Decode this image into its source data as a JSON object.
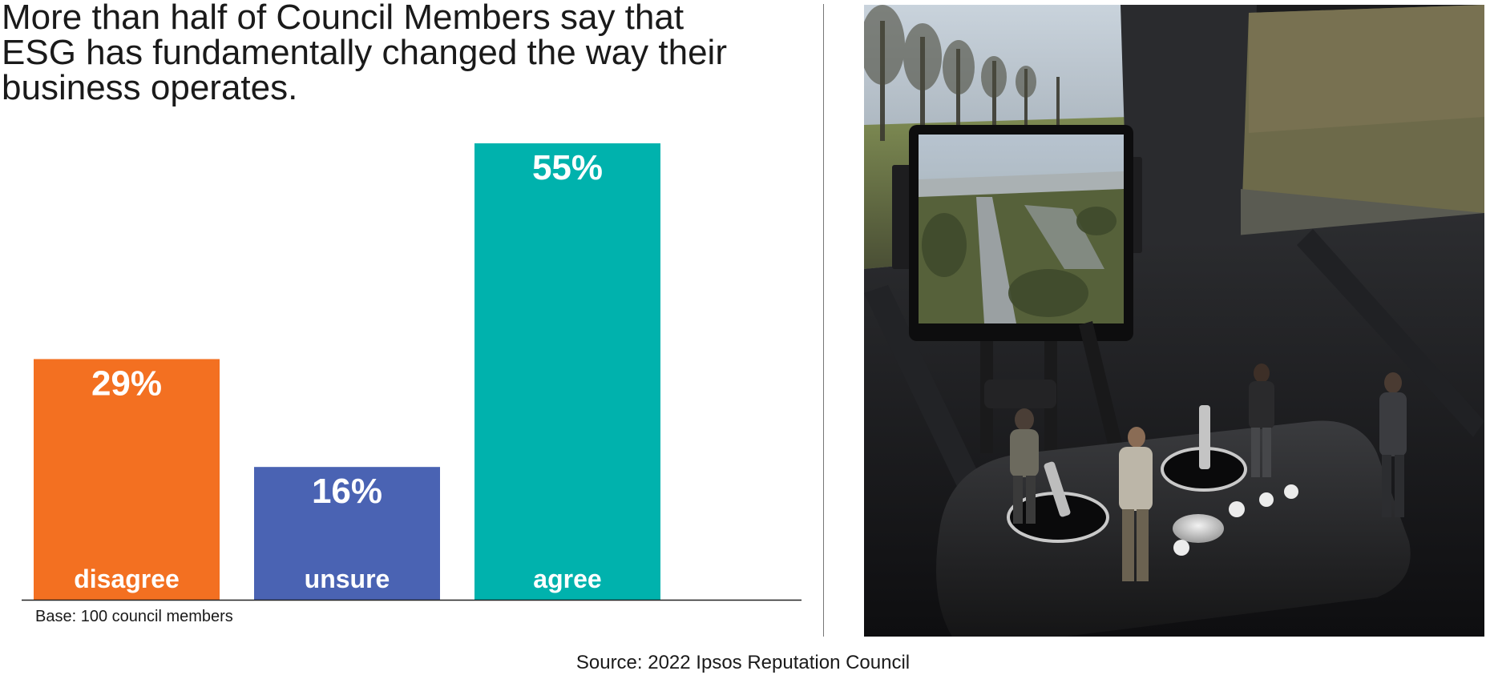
{
  "title_lines": [
    "More than half of Council Members say that",
    "ESG has fundamentally changed the way their",
    "business operates."
  ],
  "base_note": "Base: 100 council members",
  "source_note": "Source: 2022 Ipsos Reputation Council",
  "colors": {
    "disagree": "#F37021",
    "unsure": "#4A63B3",
    "agree": "#00B2AD",
    "axis": "#222222",
    "label_text": "#FFFFFF"
  },
  "chart_data": {
    "type": "bar",
    "title": "More than half of Council Members say that ESG has fundamentally changed the way their business operates.",
    "categories": [
      "disagree",
      "unsure",
      "agree"
    ],
    "values": [
      29,
      16,
      55
    ],
    "value_labels": [
      "29%",
      "16%",
      "55%"
    ],
    "unit": "%",
    "xlabel": "",
    "ylabel": "",
    "ylim": [
      0,
      55
    ],
    "grid": false,
    "legend": "none",
    "category_labels_inside_bars": true
  },
  "photo": {
    "subject": "drone remote controller with tablet showing flooded river, miniature figurines, inside vehicle"
  }
}
